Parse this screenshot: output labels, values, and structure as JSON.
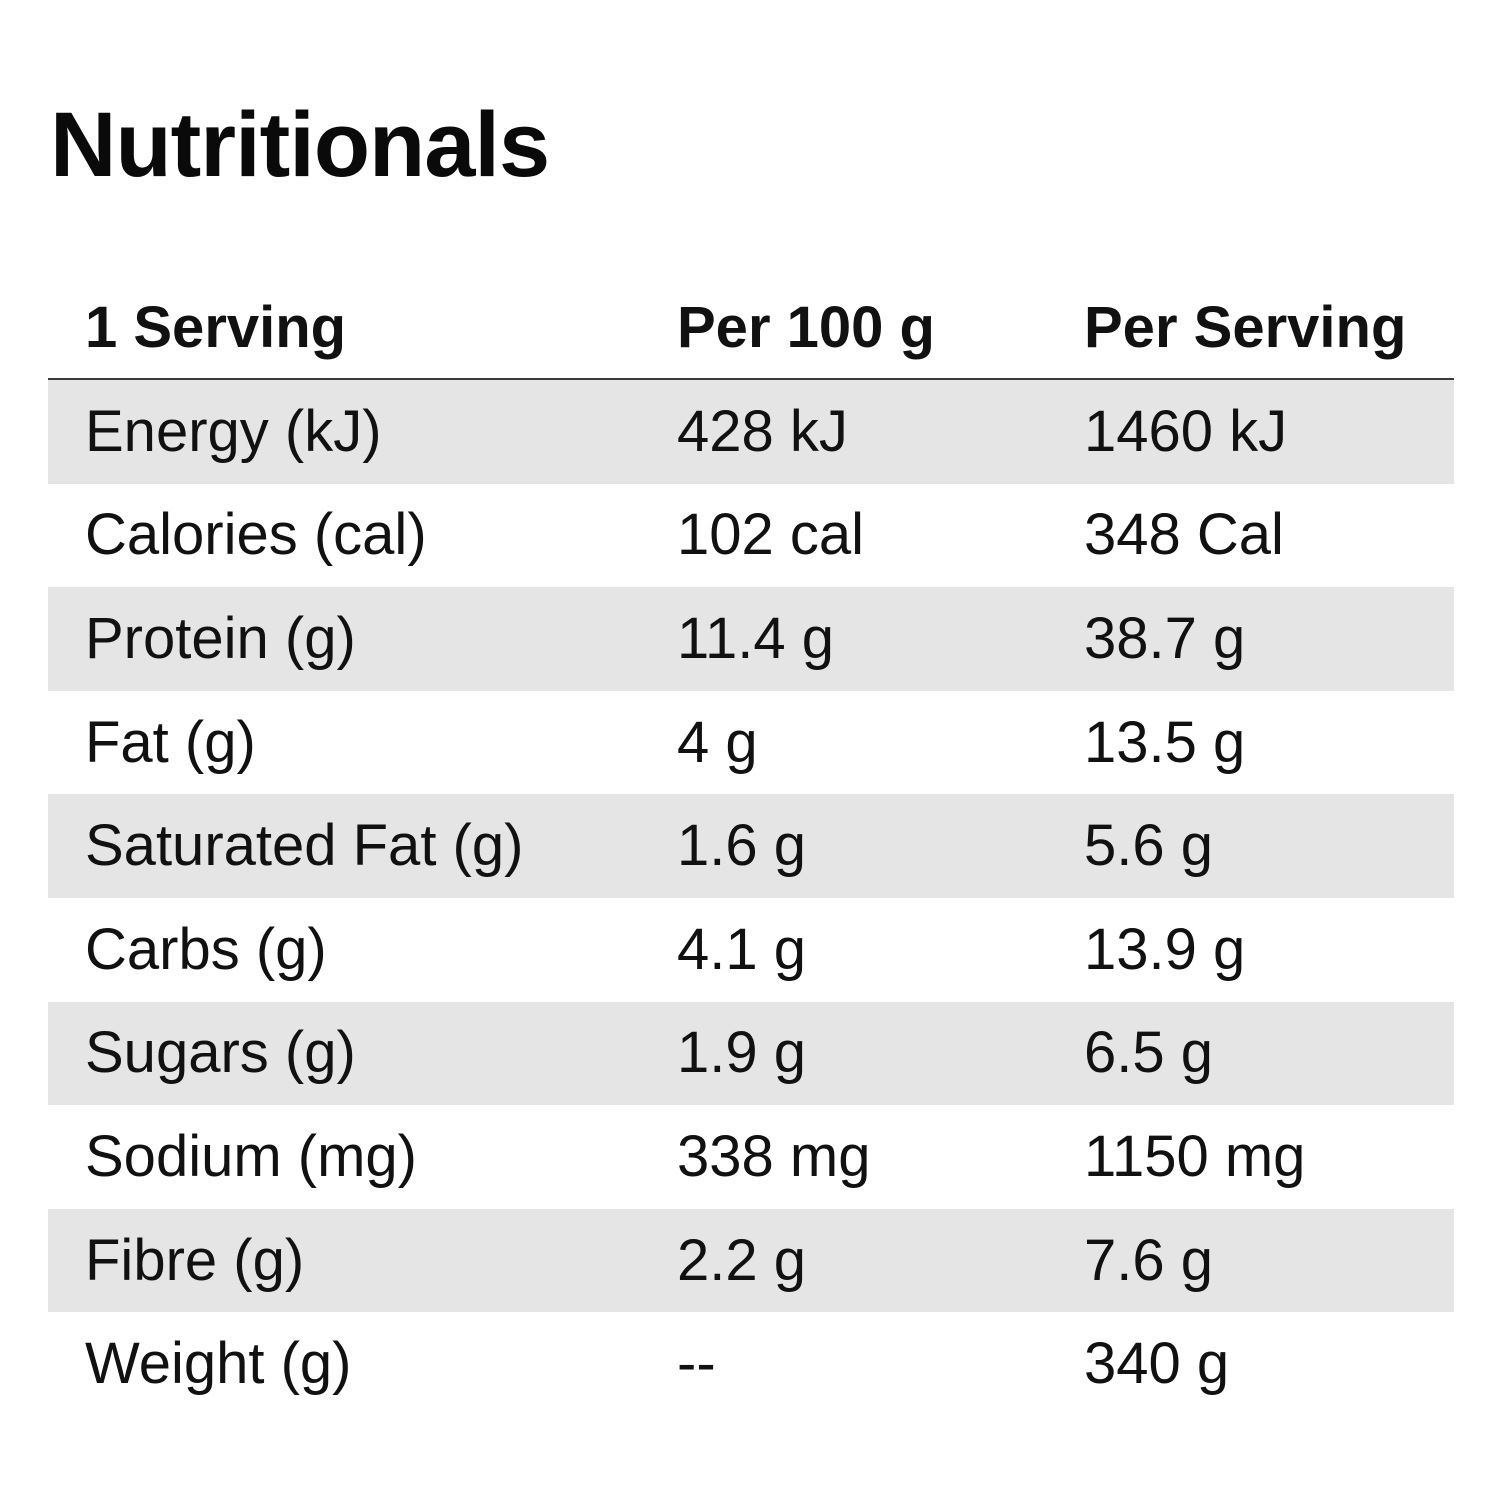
{
  "title": "Nutritionals",
  "table": {
    "headers": [
      "1 Serving",
      "Per 100 g",
      "Per Serving"
    ],
    "rows": [
      [
        "Energy (kJ)",
        "428 kJ",
        "1460 kJ"
      ],
      [
        "Calories (cal)",
        "102 cal",
        "348 Cal"
      ],
      [
        "Protein (g)",
        "11.4 g",
        "38.7 g"
      ],
      [
        "Fat (g)",
        "4 g",
        "13.5 g"
      ],
      [
        "Saturated Fat (g)",
        "1.6 g",
        "5.6 g"
      ],
      [
        "Carbs (g)",
        "4.1 g",
        "13.9 g"
      ],
      [
        "Sugars (g)",
        "1.9 g",
        "6.5 g"
      ],
      [
        "Sodium (mg)",
        "338 mg",
        "1150 mg"
      ],
      [
        "Fibre (g)",
        "2.2 g",
        "7.6 g"
      ],
      [
        "Weight (g)",
        "--",
        "340 g"
      ]
    ]
  },
  "colors": {
    "shaded_row": "#e5e5e5",
    "text": "#111111",
    "header_rule": "#3a3a3a"
  }
}
